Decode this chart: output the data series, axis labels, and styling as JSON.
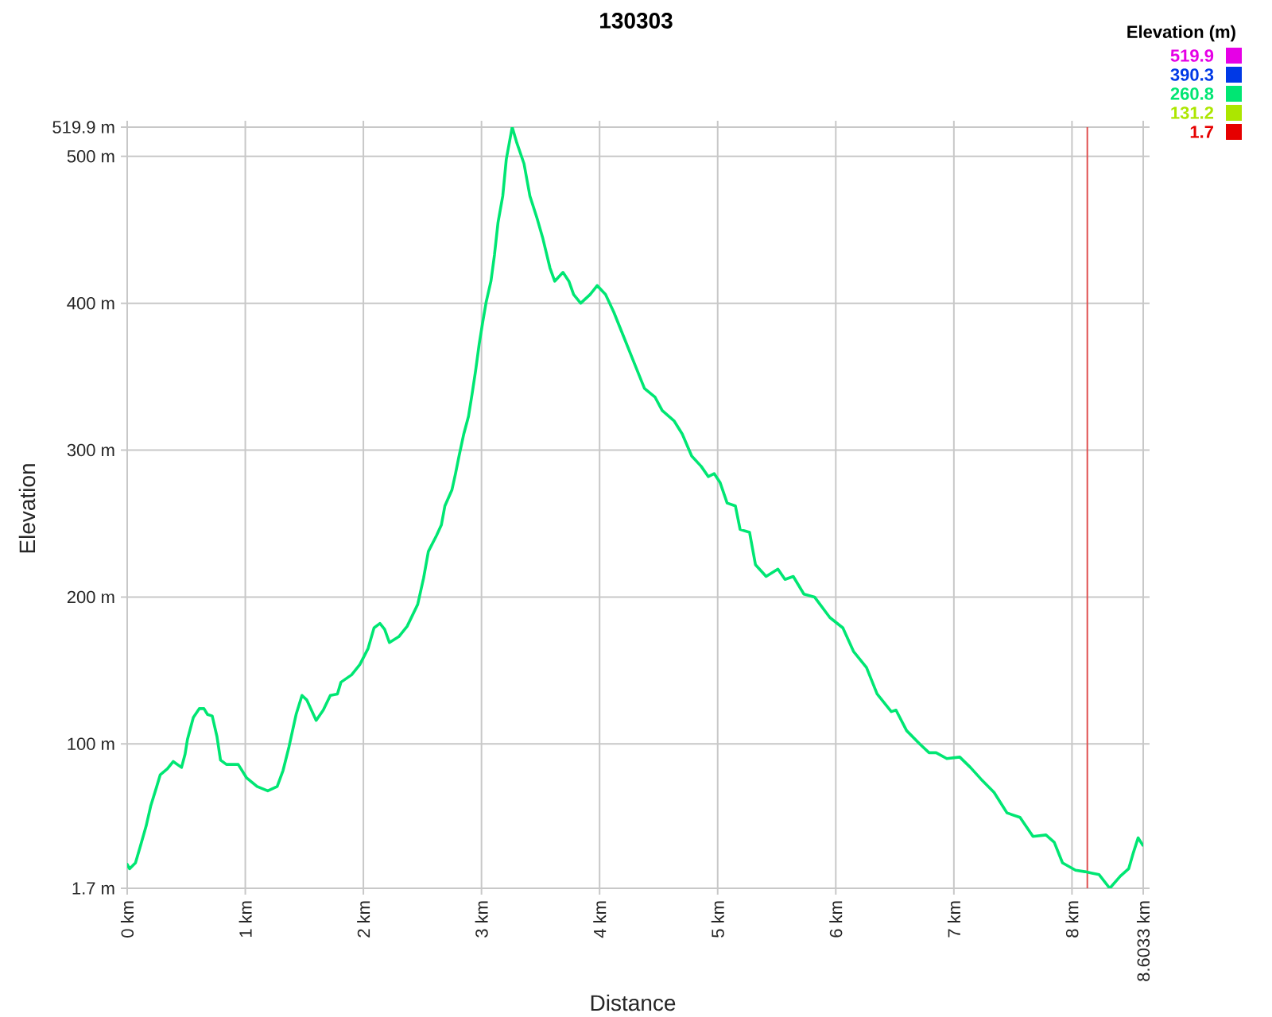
{
  "chart_data": {
    "type": "line",
    "title": "130303",
    "xlabel": "Distance",
    "ylabel": "Elevation",
    "clabel": "Elevation (m)",
    "clim": [
      1.7,
      519.9
    ],
    "cticks": [
      1.7,
      131.2,
      260.8,
      390.3,
      519.9
    ],
    "xlim": [
      0,
      8.6033
    ],
    "ylim": [
      1.7,
      519.9
    ],
    "xticks": [
      {
        "value": 0,
        "label": "0 km"
      },
      {
        "value": 1,
        "label": "1 km"
      },
      {
        "value": 2,
        "label": "2 km"
      },
      {
        "value": 3,
        "label": "3 km"
      },
      {
        "value": 4,
        "label": "4 km"
      },
      {
        "value": 5,
        "label": "5 km"
      },
      {
        "value": 6,
        "label": "6 km"
      },
      {
        "value": 7,
        "label": "7 km"
      },
      {
        "value": 8,
        "label": "8 km"
      },
      {
        "value": 8.6033,
        "label": "8.6033 km"
      }
    ],
    "yticks": [
      {
        "value": 1.7,
        "label": "1.7 m"
      },
      {
        "value": 100,
        "label": "100 m"
      },
      {
        "value": 200,
        "label": "200 m"
      },
      {
        "value": 300,
        "label": "300 m"
      },
      {
        "value": 400,
        "label": "400 m"
      },
      {
        "value": 500,
        "label": "500 m"
      },
      {
        "value": 519.9,
        "label": "519.9 m"
      }
    ],
    "grid": true,
    "ref_lines": [
      {
        "axis": "x",
        "value": 8.13,
        "color": "#e05050"
      }
    ],
    "color": "#00e673",
    "x": [
      0,
      0.02,
      0.07,
      0.11,
      0.16,
      0.2,
      0.25,
      0.28,
      0.34,
      0.39,
      0.46,
      0.49,
      0.51,
      0.56,
      0.61,
      0.65,
      0.68,
      0.72,
      0.76,
      0.79,
      0.84,
      0.94,
      1.01,
      1.1,
      1.19,
      1.27,
      1.32,
      1.37,
      1.43,
      1.48,
      1.52,
      1.6,
      1.66,
      1.72,
      1.78,
      1.81,
      1.9,
      1.97,
      2.04,
      2.09,
      2.14,
      2.18,
      2.22,
      2.3,
      2.37,
      2.46,
      2.51,
      2.55,
      2.62,
      2.66,
      2.69,
      2.75,
      2.78,
      2.81,
      2.85,
      2.89,
      2.92,
      2.95,
      2.98,
      3.01,
      3.04,
      3.08,
      3.11,
      3.14,
      3.18,
      3.21,
      3.26,
      3.3,
      3.36,
      3.41,
      3.47,
      3.52,
      3.58,
      3.62,
      3.69,
      3.74,
      3.78,
      3.84,
      3.92,
      3.98,
      4.05,
      4.12,
      4.21,
      4.3,
      4.38,
      4.47,
      4.53,
      4.63,
      4.7,
      4.78,
      4.86,
      4.92,
      4.97,
      5.02,
      5.08,
      5.15,
      5.19,
      5.27,
      5.32,
      5.41,
      5.51,
      5.57,
      5.64,
      5.73,
      5.82,
      5.95,
      6.06,
      6.15,
      6.26,
      6.35,
      6.47,
      6.51,
      6.6,
      6.71,
      6.79,
      6.85,
      6.94,
      7.05,
      7.14,
      7.23,
      7.34,
      7.45,
      7.56,
      7.67,
      7.78,
      7.85,
      7.92,
      8.03,
      8.11,
      8.17,
      8.23,
      8.32,
      8.41,
      8.48,
      8.52,
      8.56,
      8.6
    ],
    "values": [
      18,
      15,
      19,
      30,
      44,
      58,
      71,
      79,
      83,
      88,
      84,
      93,
      103,
      118,
      124,
      124,
      120,
      119,
      105,
      89,
      86,
      86,
      77,
      71,
      68,
      71,
      82,
      98,
      120,
      133,
      130,
      116,
      123,
      133,
      134,
      142,
      147,
      154,
      165,
      179,
      182,
      178,
      169,
      173,
      180,
      195,
      213,
      231,
      242,
      249,
      262,
      273,
      284,
      296,
      311,
      323,
      338,
      354,
      372,
      387,
      401,
      415,
      433,
      455,
      473,
      498,
      519.9,
      509,
      495,
      473,
      458,
      444,
      424,
      415,
      421,
      415,
      406,
      400,
      406,
      412,
      406,
      394,
      376,
      358,
      342,
      336,
      327,
      320,
      311,
      296,
      289,
      282,
      284,
      278,
      264,
      262,
      246,
      244,
      222,
      214,
      219,
      212,
      214,
      202,
      200,
      186,
      179,
      163,
      152,
      134,
      122,
      123,
      109,
      100,
      94,
      94,
      90,
      91,
      84,
      76,
      67,
      53,
      50,
      37,
      38,
      33,
      19,
      14,
      13,
      12,
      11,
      1.7,
      10,
      15,
      26,
      36,
      31
    ]
  }
}
